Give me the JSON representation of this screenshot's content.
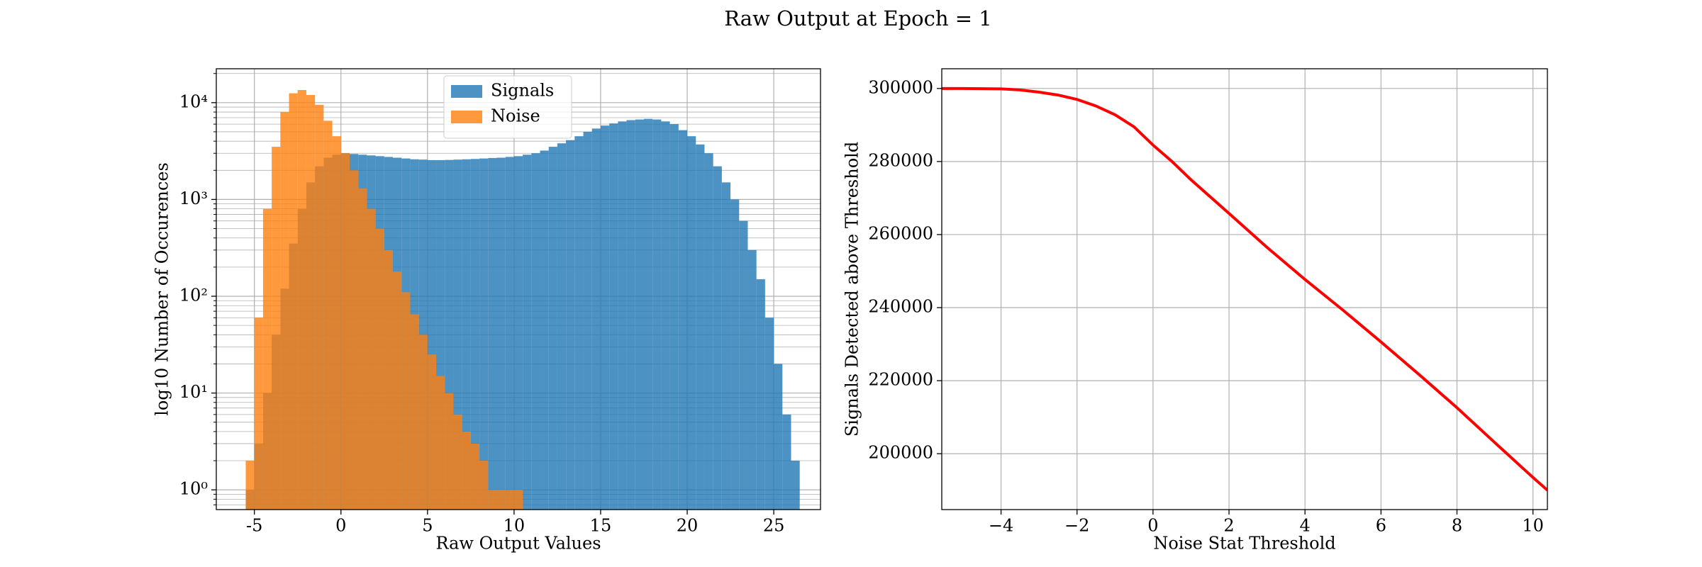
{
  "title": "Raw Output at Epoch = 1",
  "chart_data": [
    {
      "type": "histogram",
      "x_label": "Raw Output Values",
      "y_label": "log10 Number of Occurences",
      "yscale": "log",
      "grid": true,
      "legend": "upper center",
      "xlim": [
        -7.2,
        27.7
      ],
      "xticks": [
        -5,
        0,
        5,
        10,
        15,
        20,
        25
      ],
      "ylim": [
        0.625,
        22400
      ],
      "yticks": [
        {
          "value": 1,
          "label": "10⁰"
        },
        {
          "value": 10,
          "label": "10¹"
        },
        {
          "value": 100,
          "label": "10²"
        },
        {
          "value": 1000,
          "label": "10³"
        },
        {
          "value": 10000,
          "label": "10⁴"
        }
      ],
      "yminorticks": [
        0.7,
        0.8,
        0.9,
        2,
        3,
        4,
        5,
        6,
        7,
        8,
        9,
        20,
        30,
        40,
        50,
        60,
        70,
        80,
        90,
        200,
        300,
        400,
        500,
        600,
        700,
        800,
        900,
        2000,
        3000,
        4000,
        5000,
        6000,
        7000,
        8000,
        9000,
        20000
      ],
      "series": [
        {
          "name": "Signals",
          "color": "#1f77b4",
          "bins": [
            -5.5,
            -5,
            -4.5,
            -4,
            -3.5,
            -3,
            -2.5,
            -2,
            -1.5,
            -1,
            -0.5,
            0,
            0.5,
            1,
            1.5,
            2,
            2.5,
            3,
            3.5,
            4,
            4.5,
            5,
            5.5,
            6,
            6.5,
            7,
            7.5,
            8,
            8.5,
            9,
            9.5,
            10,
            10.5,
            11,
            11.5,
            12,
            12.5,
            13,
            13.5,
            14,
            14.5,
            15,
            15.5,
            16,
            16.5,
            17,
            17.5,
            18,
            18.5,
            19,
            19.5,
            20,
            20.5,
            21,
            21.5,
            22,
            22.5,
            23,
            23.5,
            24,
            24.5,
            25,
            25.5,
            26,
            26.5
          ],
          "values": [
            1,
            3,
            10,
            40,
            120,
            350,
            800,
            1500,
            2200,
            2700,
            2900,
            3000,
            2950,
            2900,
            2850,
            2800,
            2750,
            2700,
            2650,
            2600,
            2580,
            2550,
            2550,
            2560,
            2580,
            2600,
            2620,
            2650,
            2680,
            2700,
            2750,
            2800,
            2900,
            3000,
            3200,
            3500,
            3800,
            4100,
            4500,
            5000,
            5400,
            5800,
            6100,
            6400,
            6600,
            6700,
            6800,
            6700,
            6400,
            6000,
            5200,
            4500,
            3700,
            3000,
            2200,
            1500,
            1000,
            600,
            300,
            150,
            60,
            20,
            6,
            2
          ]
        },
        {
          "name": "Noise",
          "color": "#ff7f0e",
          "bins": [
            -5.5,
            -5,
            -4.5,
            -4,
            -3.5,
            -3,
            -2.5,
            -2,
            -1.5,
            -1,
            -0.5,
            0,
            0.5,
            1,
            1.5,
            2,
            2.5,
            3,
            3.5,
            4,
            4.5,
            5,
            5.5,
            6,
            6.5,
            7,
            7.5,
            8,
            8.5,
            9,
            9.5,
            10,
            10.5
          ],
          "values": [
            2,
            60,
            800,
            3500,
            8000,
            12500,
            13500,
            12000,
            9500,
            6500,
            4500,
            3000,
            2000,
            1300,
            800,
            500,
            300,
            180,
            110,
            65,
            40,
            25,
            15,
            10,
            6,
            4,
            3,
            2,
            1,
            1,
            1,
            1
          ]
        }
      ]
    },
    {
      "type": "line",
      "x_label": "Noise Stat Threshold",
      "y_label": "Signals Detected above Threshold",
      "grid": true,
      "color": "#ff0000",
      "xlim": [
        -5.56,
        10.38
      ],
      "xticks": [
        {
          "value": -4,
          "label": "−4"
        },
        {
          "value": -2,
          "label": "−2"
        },
        0,
        2,
        4,
        6,
        8,
        10
      ],
      "ylim": [
        184700,
        305400
      ],
      "yticks": [
        200000,
        220000,
        240000,
        260000,
        280000,
        300000
      ],
      "x": [
        -5.56,
        -5,
        -4,
        -3.5,
        -3,
        -2.5,
        -2,
        -1.5,
        -1,
        -0.5,
        0,
        0.5,
        1,
        2,
        3,
        4,
        5,
        6,
        7,
        8,
        9,
        10,
        10.38
      ],
      "values": [
        300000,
        300000,
        299900,
        299600,
        299000,
        298200,
        297000,
        295200,
        292800,
        289500,
        284500,
        280000,
        275000,
        265800,
        256500,
        247700,
        239300,
        230600,
        221700,
        212600,
        203000,
        193500,
        190000
      ]
    }
  ]
}
